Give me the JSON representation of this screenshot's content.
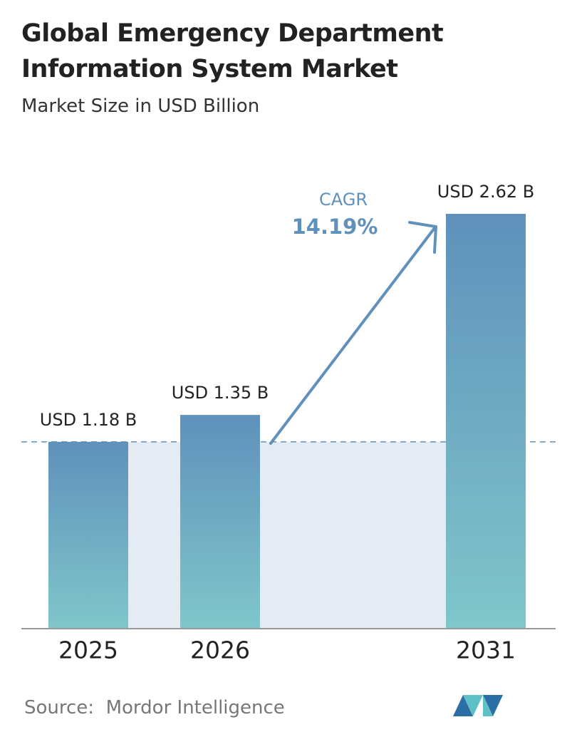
{
  "chart_data": {
    "type": "bar",
    "title": "Global Emergency Department Information System Market",
    "subtitle": "Market Size in USD Billion",
    "categories": [
      "2025",
      "2026",
      "2031"
    ],
    "values": [
      1.18,
      1.35,
      2.62
    ],
    "value_labels": [
      "USD 1.18 B",
      "USD 1.35 B",
      "USD 2.62 B"
    ],
    "annotation": {
      "label": "CAGR",
      "value": "14.19%"
    },
    "source": "Source:  Mordor Intelligence"
  }
}
